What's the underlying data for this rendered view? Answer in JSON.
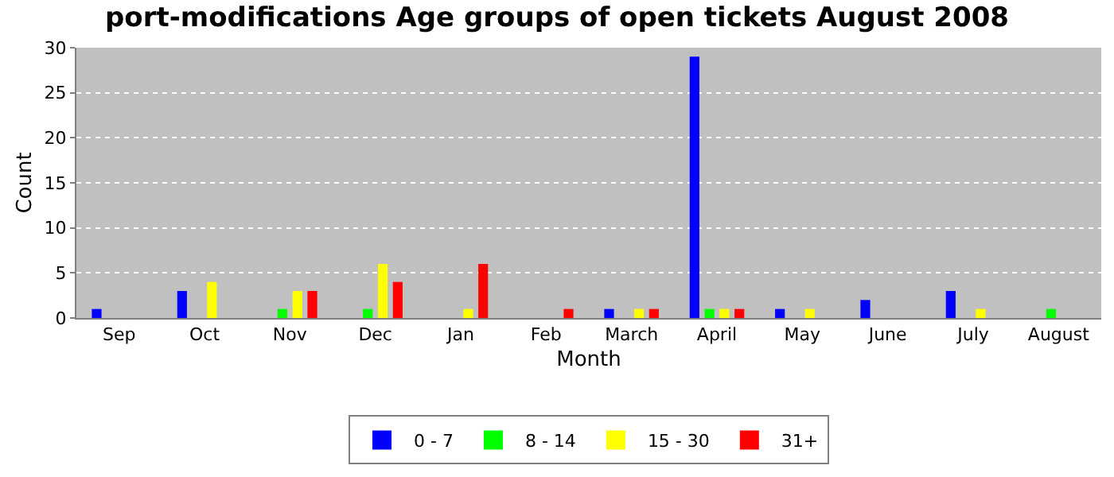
{
  "chart_data": {
    "type": "bar",
    "title": "port-modifications Age groups of open tickets August 2008",
    "xlabel": "Month",
    "ylabel": "Count",
    "categories": [
      "Sep",
      "Oct",
      "Nov",
      "Dec",
      "Jan",
      "Feb",
      "March",
      "April",
      "May",
      "June",
      "July",
      "August"
    ],
    "series": [
      {
        "name": "0 - 7",
        "color": "#0000ff",
        "values": [
          1,
          3,
          0,
          0,
          0,
          0,
          1,
          29,
          1,
          2,
          3,
          0
        ]
      },
      {
        "name": "8 - 14",
        "color": "#00ff00",
        "values": [
          0,
          0,
          1,
          1,
          0,
          0,
          0,
          1,
          0,
          0,
          0,
          1
        ]
      },
      {
        "name": "15 - 30",
        "color": "#ffff00",
        "values": [
          0,
          4,
          3,
          6,
          1,
          0,
          1,
          1,
          1,
          0,
          1,
          0
        ]
      },
      {
        "name": "31+",
        "color": "#ff0000",
        "values": [
          0,
          0,
          3,
          4,
          6,
          1,
          1,
          1,
          0,
          0,
          0,
          0
        ]
      }
    ],
    "ylim": [
      0,
      30
    ],
    "yticks": [
      0,
      5,
      10,
      15,
      20,
      25,
      30
    ],
    "grid": "y",
    "legend": "bottom"
  }
}
